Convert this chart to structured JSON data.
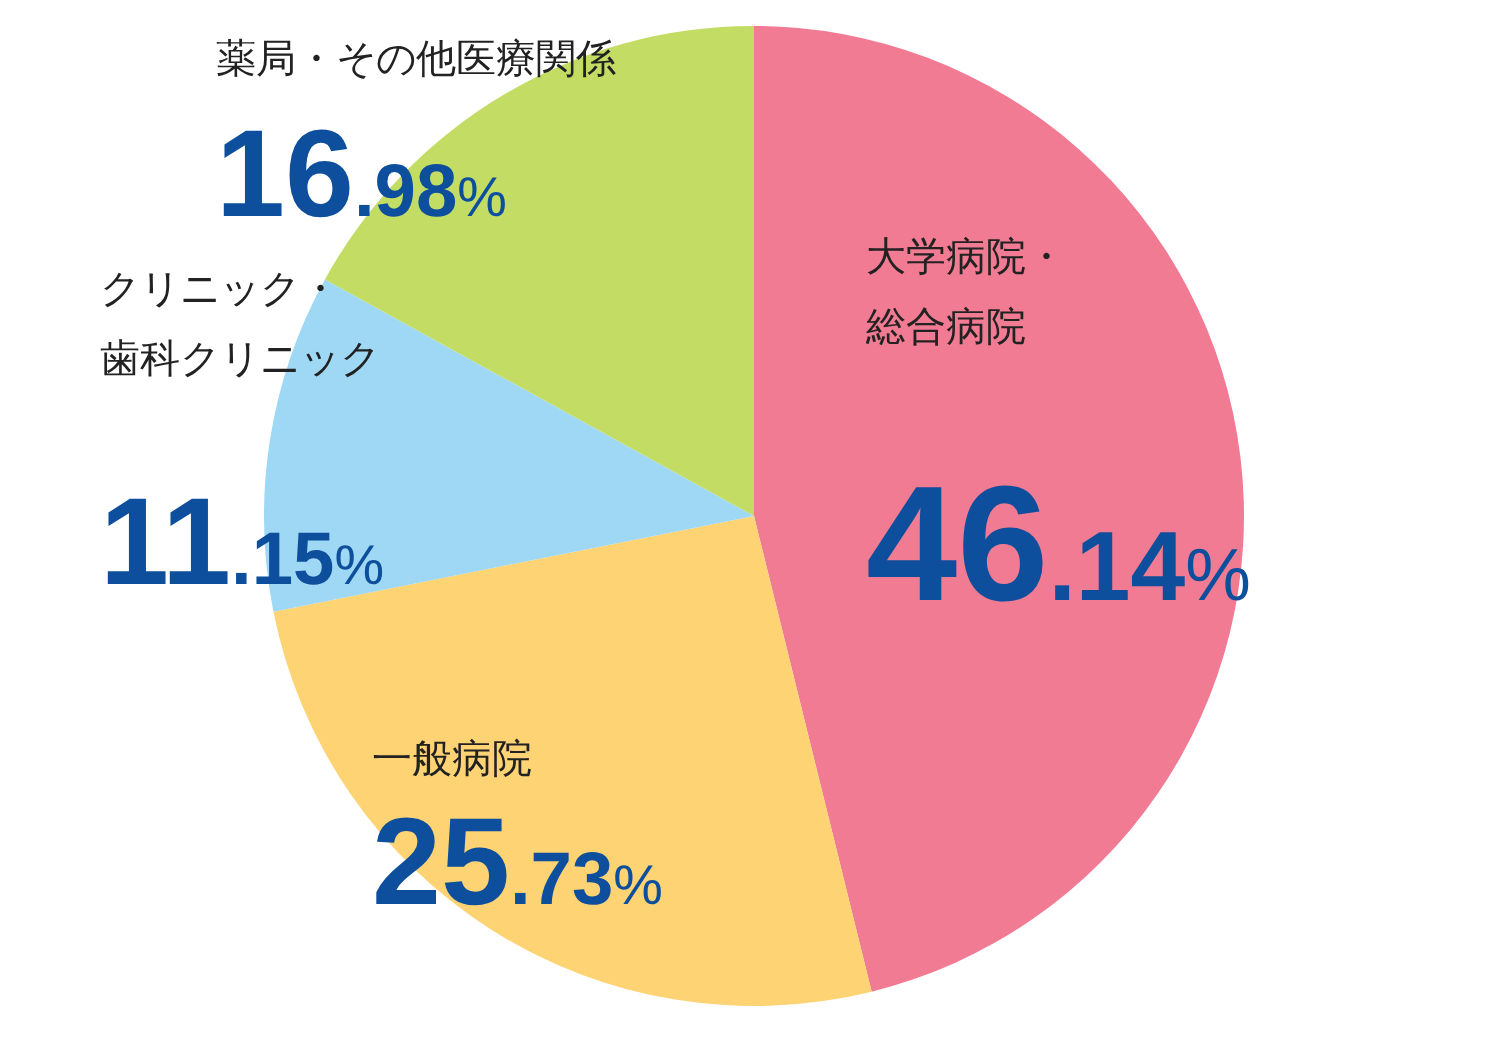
{
  "chart_data": {
    "type": "pie",
    "categories": [
      "大学病院・総合病院",
      "一般病院",
      "クリニック・歯科クリニック",
      "薬局・その他医療関係"
    ],
    "values": [
      46.14,
      25.73,
      11.15,
      16.98
    ],
    "colors": [
      "#f07b93",
      "#fdd373",
      "#9ed8f5",
      "#c3dc63"
    ],
    "value_labels": [
      "46.14%",
      "25.73%",
      "11.15%",
      "16.98%"
    ]
  }
}
